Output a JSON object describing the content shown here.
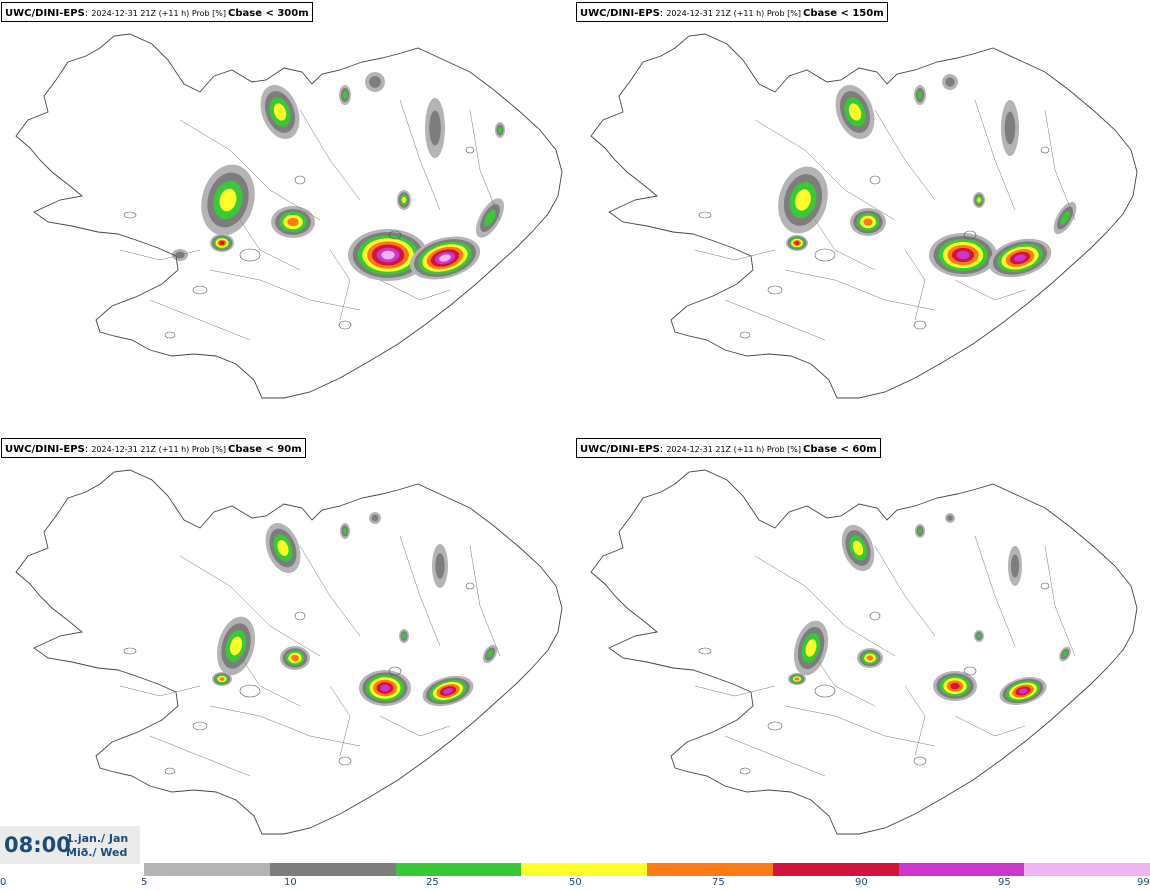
{
  "panels": [
    {
      "model": "UWC/DINI-EPS",
      "meta": "2024-12-31 21Z (+11 h) Prob [%]",
      "param": "Cbase < 300m"
    },
    {
      "model": "UWC/DINI-EPS",
      "meta": "2024-12-31 21Z (+11 h) Prob [%]",
      "param": "Cbase < 150m"
    },
    {
      "model": "UWC/DINI-EPS",
      "meta": "2024-12-31 21Z (+11 h) Prob [%]",
      "param": "Cbase < 90m"
    },
    {
      "model": "UWC/DINI-EPS",
      "meta": "2024-12-31 21Z (+11 h) Prob [%]",
      "param": "Cbase < 60m"
    }
  ],
  "time": {
    "clock": "08:00",
    "date_line1": "1.jan./ Jan",
    "date_line2": "Mið./ Wed"
  },
  "legend": {
    "ticks": [
      "0",
      "5",
      "10",
      "25",
      "50",
      "75",
      "90",
      "95",
      "99"
    ],
    "colors": [
      "#b4b4b4",
      "#7d7d7d",
      "#38c838",
      "#ffff2a",
      "#ff7a14",
      "#d2143c",
      "#cc36cc",
      "#f0b4f0"
    ]
  }
}
